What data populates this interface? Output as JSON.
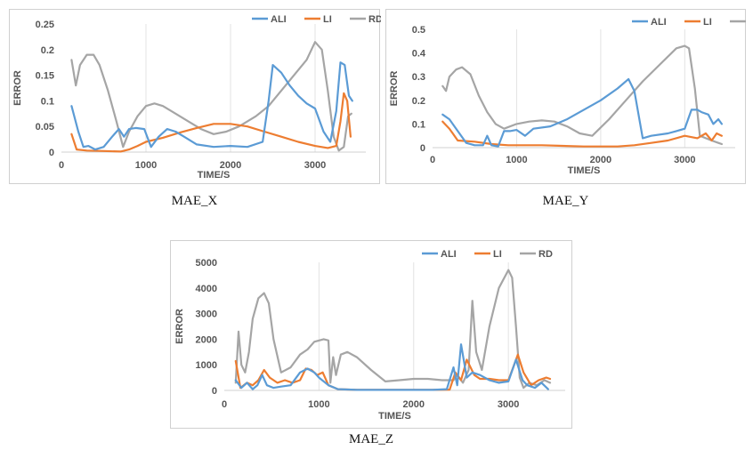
{
  "colors": {
    "ALI": "#5b9bd5",
    "LI": "#ed7d31",
    "RD": "#a5a5a5"
  },
  "chart_data": [
    {
      "type": "line",
      "caption": "MAE_X",
      "xlabel": "TIME/S",
      "ylabel": "ERROR",
      "xlim": [
        0,
        3600
      ],
      "ylim": [
        0,
        0.25
      ],
      "xticks": [
        0,
        1000,
        2000,
        3000
      ],
      "yticks": [
        0,
        0.05,
        0.1,
        0.15,
        0.2,
        0.25
      ],
      "ytick_labels": [
        "0",
        "0.05",
        "0.1",
        "0.15",
        "0.2",
        "0.25"
      ],
      "legend": [
        "ALI",
        "LI",
        "RD"
      ],
      "series": [
        {
          "name": "ALI",
          "x": [
            120,
            200,
            260,
            320,
            400,
            500,
            600,
            680,
            740,
            800,
            880,
            980,
            1060,
            1150,
            1250,
            1350,
            1450,
            1600,
            1800,
            2000,
            2200,
            2380,
            2450,
            2500,
            2600,
            2700,
            2800,
            2900,
            3000,
            3100,
            3180,
            3250,
            3300,
            3350,
            3400,
            3440
          ],
          "y": [
            0.09,
            0.04,
            0.01,
            0.012,
            0.005,
            0.01,
            0.03,
            0.045,
            0.03,
            0.045,
            0.047,
            0.045,
            0.01,
            0.03,
            0.045,
            0.04,
            0.03,
            0.015,
            0.01,
            0.012,
            0.01,
            0.02,
            0.1,
            0.17,
            0.155,
            0.13,
            0.11,
            0.095,
            0.085,
            0.04,
            0.02,
            0.08,
            0.175,
            0.17,
            0.11,
            0.1
          ]
        },
        {
          "name": "LI",
          "x": [
            120,
            180,
            300,
            500,
            700,
            800,
            900,
            1000,
            1200,
            1400,
            1600,
            1800,
            2000,
            2200,
            2400,
            2600,
            2800,
            3000,
            3150,
            3250,
            3300,
            3340,
            3380,
            3420
          ],
          "y": [
            0.035,
            0.005,
            0.003,
            0.002,
            0.001,
            0.005,
            0.012,
            0.02,
            0.028,
            0.038,
            0.047,
            0.055,
            0.055,
            0.05,
            0.04,
            0.03,
            0.02,
            0.012,
            0.008,
            0.012,
            0.06,
            0.115,
            0.1,
            0.03
          ]
        },
        {
          "name": "RD",
          "x": [
            120,
            170,
            220,
            300,
            380,
            450,
            550,
            650,
            730,
            800,
            900,
            1000,
            1100,
            1200,
            1350,
            1500,
            1650,
            1800,
            1950,
            2100,
            2300,
            2450,
            2600,
            2750,
            2900,
            3000,
            3080,
            3150,
            3220,
            3280,
            3340,
            3390,
            3430
          ],
          "y": [
            0.18,
            0.13,
            0.17,
            0.19,
            0.19,
            0.17,
            0.12,
            0.06,
            0.01,
            0.04,
            0.07,
            0.09,
            0.095,
            0.09,
            0.075,
            0.06,
            0.045,
            0.035,
            0.04,
            0.05,
            0.07,
            0.09,
            0.12,
            0.15,
            0.18,
            0.215,
            0.2,
            0.12,
            0.03,
            0.003,
            0.01,
            0.07,
            0.075
          ]
        }
      ]
    },
    {
      "type": "line",
      "caption": "MAE_Y",
      "xlabel": "TIME/S",
      "ylabel": "ERROR",
      "xlim": [
        0,
        3600
      ],
      "ylim": [
        0,
        0.5
      ],
      "xticks": [
        0,
        1000,
        2000,
        3000
      ],
      "yticks": [
        0,
        0.1,
        0.2,
        0.3,
        0.4,
        0.5
      ],
      "ytick_labels": [
        "0",
        "0.1",
        "0.2",
        "0.3",
        "0.4",
        "0.5"
      ],
      "legend": [
        "ALI",
        "LI",
        "RD"
      ],
      "series": [
        {
          "name": "ALI",
          "x": [
            120,
            200,
            300,
            400,
            500,
            600,
            650,
            700,
            780,
            850,
            920,
            1000,
            1100,
            1200,
            1400,
            1600,
            1800,
            2000,
            2200,
            2330,
            2400,
            2500,
            2600,
            2800,
            2900,
            3000,
            3080,
            3150,
            3200,
            3280,
            3340,
            3400,
            3440
          ],
          "y": [
            0.14,
            0.12,
            0.07,
            0.02,
            0.01,
            0.01,
            0.05,
            0.01,
            0.005,
            0.07,
            0.07,
            0.075,
            0.05,
            0.08,
            0.09,
            0.12,
            0.16,
            0.2,
            0.25,
            0.29,
            0.24,
            0.04,
            0.05,
            0.06,
            0.07,
            0.08,
            0.16,
            0.16,
            0.15,
            0.14,
            0.1,
            0.12,
            0.1
          ]
        },
        {
          "name": "LI",
          "x": [
            120,
            200,
            300,
            500,
            700,
            900,
            1100,
            1300,
            1500,
            1800,
            2000,
            2200,
            2400,
            2600,
            2800,
            3000,
            3150,
            3250,
            3320,
            3380,
            3440
          ],
          "y": [
            0.11,
            0.08,
            0.03,
            0.025,
            0.015,
            0.01,
            0.01,
            0.01,
            0.008,
            0.005,
            0.005,
            0.005,
            0.01,
            0.02,
            0.03,
            0.05,
            0.04,
            0.06,
            0.03,
            0.06,
            0.05
          ]
        },
        {
          "name": "RD",
          "x": [
            120,
            160,
            200,
            280,
            350,
            450,
            550,
            650,
            750,
            850,
            1000,
            1150,
            1300,
            1450,
            1600,
            1750,
            1900,
            2100,
            2300,
            2500,
            2700,
            2900,
            3000,
            3050,
            3120,
            3180,
            3250,
            3320,
            3400,
            3440
          ],
          "y": [
            0.26,
            0.24,
            0.3,
            0.33,
            0.34,
            0.31,
            0.22,
            0.15,
            0.1,
            0.08,
            0.1,
            0.11,
            0.115,
            0.11,
            0.09,
            0.06,
            0.05,
            0.12,
            0.2,
            0.28,
            0.35,
            0.42,
            0.43,
            0.42,
            0.25,
            0.05,
            0.04,
            0.03,
            0.02,
            0.015
          ]
        }
      ]
    },
    {
      "type": "line",
      "caption": "MAE_Z",
      "xlabel": "TIME/S",
      "ylabel": "ERROR",
      "xlim": [
        0,
        3600
      ],
      "ylim": [
        0,
        5000
      ],
      "xticks": [
        0,
        1000,
        2000,
        3000
      ],
      "yticks": [
        0,
        1000,
        2000,
        3000,
        4000,
        5000
      ],
      "ytick_labels": [
        "0",
        "1000",
        "2000",
        "3000",
        "4000",
        "5000"
      ],
      "legend": [
        "ALI",
        "LI",
        "RD"
      ],
      "series": [
        {
          "name": "ALI",
          "x": [
            120,
            180,
            240,
            300,
            350,
            400,
            450,
            520,
            600,
            700,
            800,
            880,
            950,
            1000,
            1100,
            1200,
            1400,
            1600,
            1800,
            2000,
            2200,
            2350,
            2420,
            2460,
            2500,
            2560,
            2620,
            2700,
            2800,
            2900,
            3000,
            3080,
            3150,
            3200,
            3280,
            3350,
            3420
          ],
          "y": [
            400,
            100,
            300,
            50,
            200,
            600,
            200,
            100,
            150,
            200,
            700,
            850,
            700,
            500,
            200,
            50,
            20,
            20,
            20,
            20,
            20,
            50,
            900,
            200,
            1800,
            500,
            700,
            600,
            400,
            300,
            350,
            1200,
            400,
            200,
            100,
            300,
            50
          ]
        },
        {
          "name": "LI",
          "x": [
            120,
            170,
            240,
            300,
            360,
            420,
            480,
            560,
            640,
            720,
            800,
            860,
            920,
            980,
            1040,
            1100,
            1200,
            1400,
            1600,
            1800,
            2000,
            2200,
            2380,
            2440,
            2500,
            2560,
            2640,
            2700,
            2800,
            2900,
            3000,
            3060,
            3100,
            3160,
            3240,
            3320,
            3400,
            3440
          ],
          "y": [
            1150,
            100,
            300,
            200,
            400,
            800,
            500,
            300,
            400,
            300,
            400,
            850,
            800,
            600,
            700,
            200,
            50,
            20,
            20,
            20,
            20,
            20,
            30,
            700,
            400,
            1200,
            600,
            450,
            450,
            400,
            400,
            1000,
            1400,
            700,
            200,
            400,
            500,
            450
          ]
        },
        {
          "name": "RD",
          "x": [
            120,
            150,
            180,
            220,
            260,
            300,
            360,
            420,
            470,
            520,
            600,
            700,
            800,
            880,
            950,
            1050,
            1100,
            1120,
            1150,
            1180,
            1230,
            1300,
            1400,
            1550,
            1700,
            1850,
            2000,
            2150,
            2300,
            2420,
            2460,
            2520,
            2580,
            2620,
            2660,
            2720,
            2800,
            2900,
            3000,
            3040,
            3080,
            3120,
            3160,
            3220,
            3300,
            3380,
            3440
          ],
          "y": [
            300,
            2300,
            1000,
            700,
            1500,
            2800,
            3600,
            3800,
            3400,
            2000,
            700,
            900,
            1400,
            1600,
            1900,
            2000,
            1950,
            300,
            1300,
            600,
            1400,
            1500,
            1300,
            800,
            350,
            400,
            450,
            450,
            400,
            400,
            600,
            300,
            800,
            3500,
            1500,
            800,
            2500,
            4000,
            4700,
            4400,
            2500,
            500,
            100,
            300,
            200,
            400,
            300
          ]
        }
      ]
    }
  ]
}
